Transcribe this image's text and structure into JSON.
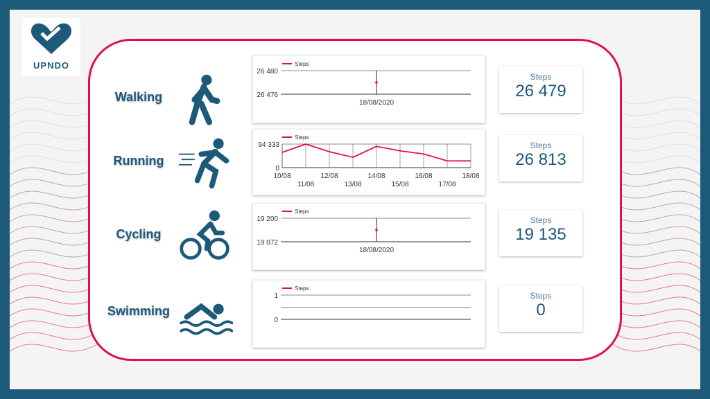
{
  "logo": {
    "text": "UPNDO"
  },
  "colors": {
    "accent": "#e0104f",
    "brand": "#1d5a7a"
  },
  "activities": [
    {
      "name": "Walking",
      "icon": "walking-icon",
      "legend": "Steps",
      "yticks": [
        "26 480",
        "26 476"
      ],
      "xlabel": "18/08/2020",
      "kpi_label": "Steps",
      "kpi_value": "26 479"
    },
    {
      "name": "Running",
      "icon": "running-icon",
      "legend": "Steps",
      "yticks": [
        "94 333",
        "0"
      ],
      "kpi_label": "Steps",
      "kpi_value": "26 813"
    },
    {
      "name": "Cycling",
      "icon": "cycling-icon",
      "legend": "Steps",
      "yticks": [
        "19 200",
        "19 072"
      ],
      "xlabel": "18/08/2020",
      "kpi_label": "Steps",
      "kpi_value": "19 135"
    },
    {
      "name": "Swimming",
      "icon": "swimming-icon",
      "legend": "Steps",
      "yticks": [
        "1",
        "0"
      ],
      "kpi_label": "Steps",
      "kpi_value": "0"
    }
  ],
  "chart_data": {
    "type": "line",
    "title": "Running",
    "series": [
      {
        "name": "Steps",
        "values": [
          61000,
          94333,
          63800,
          41300,
          85300,
          67400,
          54800,
          27000,
          26813
        ]
      }
    ],
    "categories": [
      "10/08",
      "11/08",
      "12/08",
      "13/08",
      "14/08",
      "15/08",
      "16/08",
      "17/08",
      "18/08"
    ],
    "ylim": [
      0,
      94333
    ]
  }
}
